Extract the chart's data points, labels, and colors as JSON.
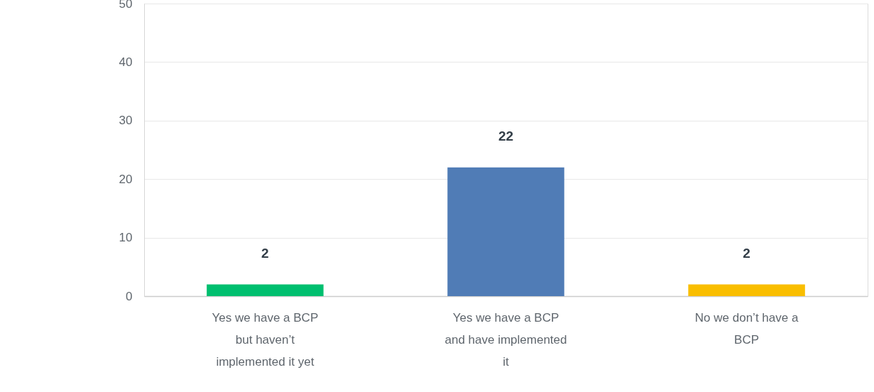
{
  "chart_data": {
    "type": "bar",
    "categories": [
      "Yes we have a BCP but haven’t implemented it yet",
      "Yes we have a BCP and have implemented it",
      "No we don’t have a BCP"
    ],
    "values": [
      2,
      22,
      2
    ],
    "colors": [
      "#00bf6f",
      "#507cb6",
      "#f9be00"
    ],
    "ylim": [
      0,
      50
    ],
    "yticks": [
      0,
      10,
      20,
      30,
      40,
      50
    ],
    "grid": "y",
    "data_labels": true
  }
}
